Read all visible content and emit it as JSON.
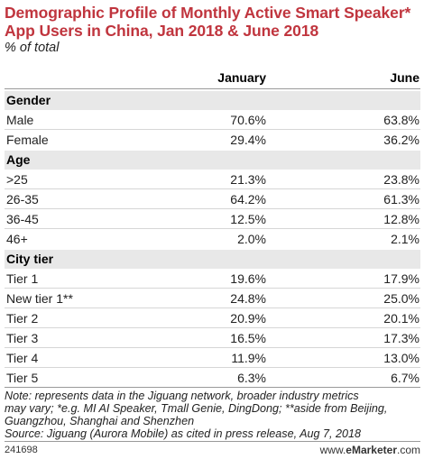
{
  "chart_data": {
    "type": "table",
    "title": "Demographic Profile of Monthly Active Smart Speaker* App Users in China, Jan 2018 & June 2018",
    "subtitle": "% of total",
    "columns": [
      "January",
      "June"
    ],
    "sections": [
      {
        "name": "Gender",
        "rows": [
          {
            "label": "Male",
            "january": "70.6%",
            "june": "63.8%"
          },
          {
            "label": "Female",
            "january": "29.4%",
            "june": "36.2%"
          }
        ]
      },
      {
        "name": "Age",
        "rows": [
          {
            "label": ">25",
            "january": "21.3%",
            "june": "23.8%"
          },
          {
            "label": "26-35",
            "january": "64.2%",
            "june": "61.3%"
          },
          {
            "label": "36-45",
            "january": "12.5%",
            "june": "12.8%"
          },
          {
            "label": "46+",
            "january": "2.0%",
            "june": "2.1%"
          }
        ]
      },
      {
        "name": "City tier",
        "rows": [
          {
            "label": "Tier 1",
            "january": "19.6%",
            "june": "17.9%"
          },
          {
            "label": "New tier 1**",
            "january": "24.8%",
            "june": "25.0%"
          },
          {
            "label": "Tier 2",
            "january": "20.9%",
            "june": "20.1%"
          },
          {
            "label": "Tier 3",
            "january": "16.5%",
            "june": "17.3%"
          },
          {
            "label": "Tier 4",
            "january": "11.9%",
            "june": "13.0%"
          },
          {
            "label": "Tier 5",
            "january": "6.3%",
            "june": "6.7%"
          }
        ]
      }
    ]
  },
  "notes": {
    "line1": "Note: represents data in the Jiguang network, broader industry metrics",
    "line2": "may vary; *e.g. MI AI Speaker, Tmall Genie, DingDong; **aside from Beijing,",
    "line3": "Guangzhou, Shanghai and Shenzhen",
    "source": "Source: Jiguang (Aurora Mobile) as cited in press release, Aug 7, 2018"
  },
  "footer": {
    "id": "241698",
    "brand_prefix": "www.",
    "brand_name": "eMarketer",
    "brand_suffix": ".com"
  }
}
